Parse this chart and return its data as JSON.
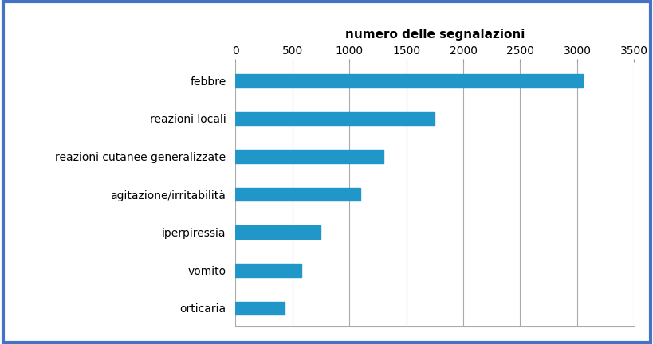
{
  "categories": [
    "orticaria",
    "vomito",
    "iperpiressia",
    "agitazione/irritabilità",
    "reazioni cutanee generalizzate",
    "reazioni locali",
    "febbre"
  ],
  "values": [
    430,
    580,
    750,
    1100,
    1300,
    1750,
    3050
  ],
  "bar_color": "#2196c8",
  "xlabel": "numero delle segnalazioni",
  "xlim": [
    0,
    3500
  ],
  "xticks": [
    0,
    500,
    1000,
    1500,
    2000,
    2500,
    3000,
    3500
  ],
  "background_color": "#ffffff",
  "border_color": "#4472c4",
  "grid_color": "#aaaaaa",
  "xlabel_fontsize": 11,
  "label_fontsize": 10,
  "tick_fontsize": 10,
  "bar_height": 0.35
}
